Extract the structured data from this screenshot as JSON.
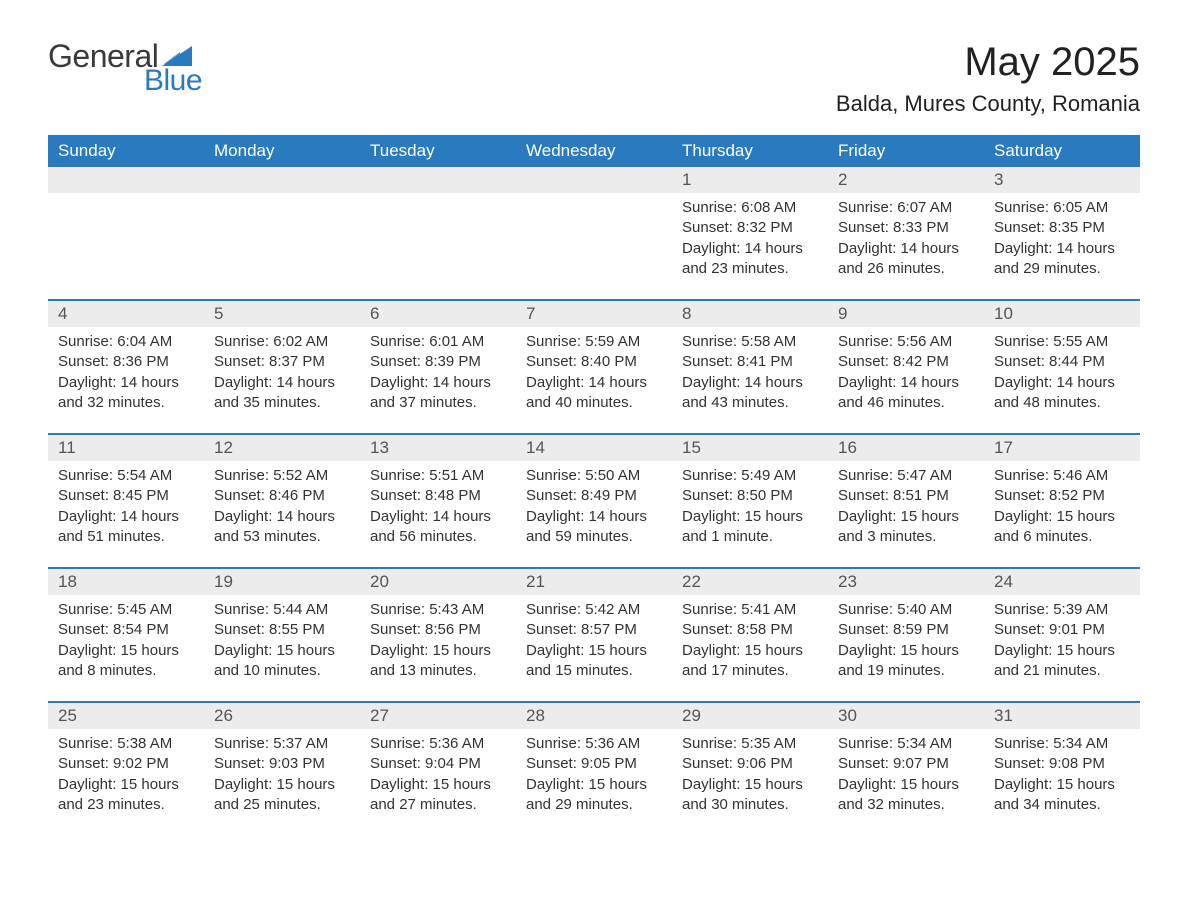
{
  "logo": {
    "text1": "General",
    "text2": "Blue",
    "triangle_color": "#2a7ac0"
  },
  "title": "May 2025",
  "location": "Balda, Mures County, Romania",
  "colors": {
    "header_bg": "#2a7ac0",
    "header_text": "#ffffff",
    "daynum_bg": "#ececec",
    "row_border": "#2a7ac0",
    "body_text": "#333333"
  },
  "typography": {
    "title_fontsize": 40,
    "location_fontsize": 22,
    "header_fontsize": 17,
    "daynum_fontsize": 17,
    "cell_fontsize": 15
  },
  "weekdays": [
    "Sunday",
    "Monday",
    "Tuesday",
    "Wednesday",
    "Thursday",
    "Friday",
    "Saturday"
  ],
  "weeks": [
    [
      null,
      null,
      null,
      null,
      {
        "n": "1",
        "sr": "6:08 AM",
        "ss": "8:32 PM",
        "dl": "14 hours and 23 minutes."
      },
      {
        "n": "2",
        "sr": "6:07 AM",
        "ss": "8:33 PM",
        "dl": "14 hours and 26 minutes."
      },
      {
        "n": "3",
        "sr": "6:05 AM",
        "ss": "8:35 PM",
        "dl": "14 hours and 29 minutes."
      }
    ],
    [
      {
        "n": "4",
        "sr": "6:04 AM",
        "ss": "8:36 PM",
        "dl": "14 hours and 32 minutes."
      },
      {
        "n": "5",
        "sr": "6:02 AM",
        "ss": "8:37 PM",
        "dl": "14 hours and 35 minutes."
      },
      {
        "n": "6",
        "sr": "6:01 AM",
        "ss": "8:39 PM",
        "dl": "14 hours and 37 minutes."
      },
      {
        "n": "7",
        "sr": "5:59 AM",
        "ss": "8:40 PM",
        "dl": "14 hours and 40 minutes."
      },
      {
        "n": "8",
        "sr": "5:58 AM",
        "ss": "8:41 PM",
        "dl": "14 hours and 43 minutes."
      },
      {
        "n": "9",
        "sr": "5:56 AM",
        "ss": "8:42 PM",
        "dl": "14 hours and 46 minutes."
      },
      {
        "n": "10",
        "sr": "5:55 AM",
        "ss": "8:44 PM",
        "dl": "14 hours and 48 minutes."
      }
    ],
    [
      {
        "n": "11",
        "sr": "5:54 AM",
        "ss": "8:45 PM",
        "dl": "14 hours and 51 minutes."
      },
      {
        "n": "12",
        "sr": "5:52 AM",
        "ss": "8:46 PM",
        "dl": "14 hours and 53 minutes."
      },
      {
        "n": "13",
        "sr": "5:51 AM",
        "ss": "8:48 PM",
        "dl": "14 hours and 56 minutes."
      },
      {
        "n": "14",
        "sr": "5:50 AM",
        "ss": "8:49 PM",
        "dl": "14 hours and 59 minutes."
      },
      {
        "n": "15",
        "sr": "5:49 AM",
        "ss": "8:50 PM",
        "dl": "15 hours and 1 minute."
      },
      {
        "n": "16",
        "sr": "5:47 AM",
        "ss": "8:51 PM",
        "dl": "15 hours and 3 minutes."
      },
      {
        "n": "17",
        "sr": "5:46 AM",
        "ss": "8:52 PM",
        "dl": "15 hours and 6 minutes."
      }
    ],
    [
      {
        "n": "18",
        "sr": "5:45 AM",
        "ss": "8:54 PM",
        "dl": "15 hours and 8 minutes."
      },
      {
        "n": "19",
        "sr": "5:44 AM",
        "ss": "8:55 PM",
        "dl": "15 hours and 10 minutes."
      },
      {
        "n": "20",
        "sr": "5:43 AM",
        "ss": "8:56 PM",
        "dl": "15 hours and 13 minutes."
      },
      {
        "n": "21",
        "sr": "5:42 AM",
        "ss": "8:57 PM",
        "dl": "15 hours and 15 minutes."
      },
      {
        "n": "22",
        "sr": "5:41 AM",
        "ss": "8:58 PM",
        "dl": "15 hours and 17 minutes."
      },
      {
        "n": "23",
        "sr": "5:40 AM",
        "ss": "8:59 PM",
        "dl": "15 hours and 19 minutes."
      },
      {
        "n": "24",
        "sr": "5:39 AM",
        "ss": "9:01 PM",
        "dl": "15 hours and 21 minutes."
      }
    ],
    [
      {
        "n": "25",
        "sr": "5:38 AM",
        "ss": "9:02 PM",
        "dl": "15 hours and 23 minutes."
      },
      {
        "n": "26",
        "sr": "5:37 AM",
        "ss": "9:03 PM",
        "dl": "15 hours and 25 minutes."
      },
      {
        "n": "27",
        "sr": "5:36 AM",
        "ss": "9:04 PM",
        "dl": "15 hours and 27 minutes."
      },
      {
        "n": "28",
        "sr": "5:36 AM",
        "ss": "9:05 PM",
        "dl": "15 hours and 29 minutes."
      },
      {
        "n": "29",
        "sr": "5:35 AM",
        "ss": "9:06 PM",
        "dl": "15 hours and 30 minutes."
      },
      {
        "n": "30",
        "sr": "5:34 AM",
        "ss": "9:07 PM",
        "dl": "15 hours and 32 minutes."
      },
      {
        "n": "31",
        "sr": "5:34 AM",
        "ss": "9:08 PM",
        "dl": "15 hours and 34 minutes."
      }
    ]
  ],
  "labels": {
    "sunrise": "Sunrise:",
    "sunset": "Sunset:",
    "daylight": "Daylight:"
  }
}
